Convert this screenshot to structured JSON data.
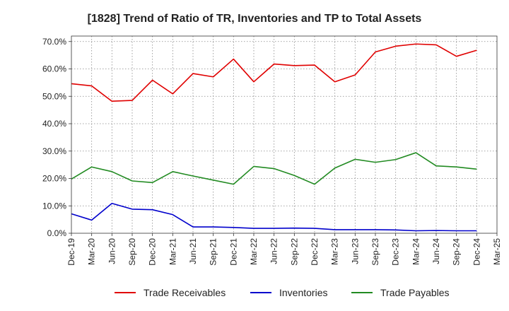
{
  "chart_data": {
    "type": "line",
    "title": "[1828]  Trend of Ratio of TR, Inventories and TP to Total Assets",
    "xlabel": "",
    "ylabel": "",
    "x": [
      "Dec-19",
      "Mar-20",
      "Jun-20",
      "Sep-20",
      "Dec-20",
      "Mar-21",
      "Jun-21",
      "Sep-21",
      "Dec-21",
      "Mar-22",
      "Jun-22",
      "Sep-22",
      "Dec-22",
      "Mar-23",
      "Jun-23",
      "Sep-23",
      "Dec-23",
      "Mar-24",
      "Jun-24",
      "Sep-24",
      "Dec-24"
    ],
    "x_tick_labels": [
      "Dec-19",
      "Mar-20",
      "Jun-20",
      "Sep-20",
      "Dec-20",
      "Mar-21",
      "Jun-21",
      "Sep-21",
      "Dec-21",
      "Mar-22",
      "Jun-22",
      "Sep-22",
      "Dec-22",
      "Mar-23",
      "Jun-23",
      "Sep-23",
      "Dec-23",
      "Mar-24",
      "Jun-24",
      "Sep-24",
      "Dec-24",
      "Mar-25"
    ],
    "y_tick_labels": [
      "0.0%",
      "10.0%",
      "20.0%",
      "30.0%",
      "40.0%",
      "50.0%",
      "60.0%",
      "70.0%"
    ],
    "y_ticks": [
      0,
      10,
      20,
      30,
      40,
      50,
      60,
      70
    ],
    "ylim": [
      0,
      72
    ],
    "grid": true,
    "legend_position": "bottom",
    "series": [
      {
        "name": "Trade Receivables",
        "color": "#e00000",
        "values": [
          54.6,
          53.8,
          48.2,
          48.5,
          55.9,
          50.9,
          58.3,
          57.1,
          63.6,
          55.3,
          61.8,
          61.2,
          61.4,
          55.3,
          57.8,
          66.2,
          68.3,
          69.1,
          68.8,
          64.6,
          66.8
        ]
      },
      {
        "name": "Inventories",
        "color": "#0000cc",
        "values": [
          7.1,
          4.8,
          10.9,
          8.8,
          8.6,
          6.8,
          2.3,
          2.3,
          2.1,
          1.8,
          1.8,
          1.9,
          1.8,
          1.3,
          1.3,
          1.3,
          1.2,
          0.9,
          1.0,
          0.9,
          0.9
        ]
      },
      {
        "name": "Trade Payables",
        "color": "#228b22",
        "values": [
          19.8,
          24.2,
          22.5,
          19.1,
          18.5,
          22.5,
          20.9,
          19.4,
          17.9,
          24.4,
          23.6,
          21.1,
          17.9,
          23.8,
          27.0,
          25.9,
          26.9,
          29.4,
          24.6,
          24.2,
          23.4
        ]
      }
    ]
  }
}
